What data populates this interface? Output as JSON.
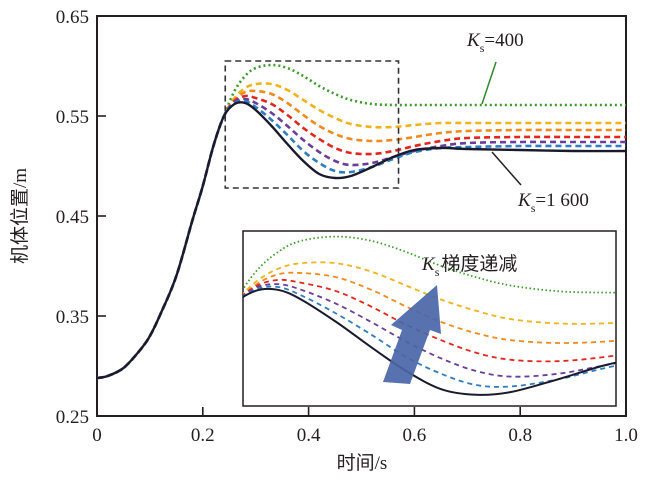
{
  "chart_data": {
    "type": "line",
    "title": "",
    "xlabel": "时间/s",
    "ylabel": "机体位置/m",
    "xlim": [
      0,
      1.0
    ],
    "ylim": [
      0.25,
      0.65
    ],
    "xticks": [
      "0",
      "0.2",
      "0.4",
      "0.6",
      "0.8",
      "1.0"
    ],
    "xtick_values": [
      0,
      0.2,
      0.4,
      0.6,
      0.8,
      1.0
    ],
    "yticks": [
      "0.25",
      "0.35",
      "0.45",
      "0.55",
      "0.65"
    ],
    "ytick_values": [
      0.25,
      0.35,
      0.45,
      0.55,
      0.65
    ],
    "grid": false,
    "x": [
      0,
      0.02,
      0.05,
      0.08,
      0.1,
      0.12,
      0.15,
      0.18,
      0.2,
      0.22,
      0.24,
      0.26,
      0.28,
      0.3,
      0.33,
      0.36,
      0.39,
      0.42,
      0.45,
      0.48,
      0.52,
      0.56,
      0.6,
      0.65,
      0.7,
      0.8,
      0.9,
      1.0
    ],
    "series": [
      {
        "name": "Ks=400",
        "color": "#3a9a2a",
        "style": "dotted",
        "values": [
          0.288,
          0.29,
          0.298,
          0.315,
          0.33,
          0.352,
          0.39,
          0.445,
          0.48,
          0.52,
          0.55,
          0.575,
          0.59,
          0.598,
          0.601,
          0.598,
          0.59,
          0.58,
          0.572,
          0.566,
          0.562,
          0.561,
          0.561,
          0.561,
          0.561,
          0.561,
          0.561,
          0.561
        ]
      },
      {
        "name": "Ks=600",
        "color": "#f2b21b",
        "style": "dashed",
        "values": [
          0.288,
          0.29,
          0.298,
          0.315,
          0.33,
          0.352,
          0.39,
          0.445,
          0.48,
          0.52,
          0.55,
          0.568,
          0.578,
          0.582,
          0.582,
          0.576,
          0.566,
          0.556,
          0.548,
          0.542,
          0.539,
          0.539,
          0.541,
          0.543,
          0.543,
          0.543,
          0.543,
          0.543
        ]
      },
      {
        "name": "Ks=800",
        "color": "#f08a1c",
        "style": "dashed",
        "values": [
          0.288,
          0.29,
          0.298,
          0.315,
          0.33,
          0.352,
          0.39,
          0.445,
          0.48,
          0.52,
          0.55,
          0.566,
          0.574,
          0.575,
          0.572,
          0.563,
          0.551,
          0.54,
          0.532,
          0.527,
          0.525,
          0.526,
          0.529,
          0.533,
          0.535,
          0.536,
          0.536,
          0.536
        ]
      },
      {
        "name": "Ks=1000",
        "color": "#e2261d",
        "style": "dashed",
        "values": [
          0.288,
          0.29,
          0.298,
          0.315,
          0.33,
          0.352,
          0.39,
          0.445,
          0.48,
          0.52,
          0.55,
          0.565,
          0.57,
          0.568,
          0.562,
          0.551,
          0.538,
          0.527,
          0.518,
          0.513,
          0.512,
          0.515,
          0.52,
          0.525,
          0.528,
          0.529,
          0.529,
          0.529
        ]
      },
      {
        "name": "Ks=1200",
        "color": "#6a3d9a",
        "style": "dashed",
        "values": [
          0.288,
          0.29,
          0.298,
          0.315,
          0.33,
          0.352,
          0.39,
          0.445,
          0.48,
          0.52,
          0.55,
          0.564,
          0.567,
          0.563,
          0.553,
          0.54,
          0.526,
          0.514,
          0.505,
          0.501,
          0.503,
          0.509,
          0.515,
          0.52,
          0.523,
          0.524,
          0.524,
          0.524
        ]
      },
      {
        "name": "Ks=1400",
        "color": "#2f7dc1",
        "style": "dashed",
        "values": [
          0.288,
          0.29,
          0.298,
          0.315,
          0.33,
          0.352,
          0.39,
          0.445,
          0.48,
          0.52,
          0.55,
          0.563,
          0.565,
          0.559,
          0.546,
          0.531,
          0.515,
          0.503,
          0.495,
          0.494,
          0.499,
          0.507,
          0.514,
          0.518,
          0.519,
          0.52,
          0.52,
          0.52
        ]
      },
      {
        "name": "Ks=1600",
        "color": "#1a1a2e",
        "style": "solid",
        "values": [
          0.288,
          0.29,
          0.298,
          0.315,
          0.33,
          0.352,
          0.39,
          0.445,
          0.48,
          0.52,
          0.55,
          0.562,
          0.563,
          0.556,
          0.54,
          0.522,
          0.505,
          0.492,
          0.488,
          0.49,
          0.499,
          0.509,
          0.516,
          0.518,
          0.517,
          0.516,
          0.515,
          0.515
        ]
      }
    ],
    "annotations": [
      {
        "label_italic": "K",
        "label_sub": "s",
        "label_rest": "=400",
        "target_series": "Ks=400"
      },
      {
        "label_italic": "K",
        "label_sub": "s",
        "label_rest": "=1 600",
        "target_series": "Ks=1600"
      },
      {
        "label_italic": "K",
        "label_sub": "s",
        "label_rest": "梯度递减",
        "meaning": "arrow in inset pointing toward decreasing Ks"
      }
    ],
    "zoom_box": {
      "xrange": [
        0.25,
        0.57
      ],
      "yrange": [
        0.48,
        0.605
      ],
      "style": "dashed"
    },
    "inset": {
      "xrange": [
        0.25,
        0.57
      ],
      "yrange": [
        0.48,
        0.605
      ],
      "description": "magnified view of the dashed-box region"
    },
    "legend": "none"
  }
}
